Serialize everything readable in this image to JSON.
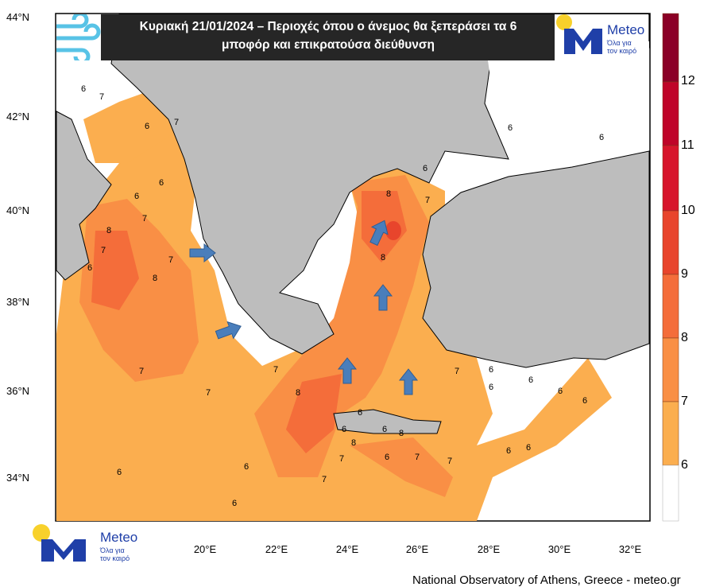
{
  "title": {
    "line1": "Κυριακή 21/01/2024 – Περιοχές όπου ο άνεμος θα ξεπεράσει τα 6",
    "line2": "μποφόρ και επικρατούσα διεύθυνση"
  },
  "logo": {
    "name": "Meteo",
    "tagline1": "Όλα για",
    "tagline2": "τον καιρό"
  },
  "lat_ticks": [
    "44°N",
    "42°N",
    "40°N",
    "38°N",
    "36°N",
    "34°N"
  ],
  "lon_ticks": [
    "20°E",
    "22°E",
    "24°E",
    "26°E",
    "28°E",
    "30°E",
    "32°E"
  ],
  "colorbar": {
    "labels": [
      "12",
      "11",
      "10",
      "9",
      "8",
      "7",
      "6"
    ],
    "colors": [
      "#8b0026",
      "#bf0428",
      "#d7152b",
      "#e8452c",
      "#f46d3a",
      "#f98f45",
      "#fbae4f",
      "#ffffff"
    ]
  },
  "field_colors": {
    "b6": "#fbae4f",
    "b7": "#f98f45",
    "b8": "#f46d3a",
    "b9": "#e8452c",
    "land": "#bdbdbd",
    "arrow": "#4a7ebb"
  },
  "contour_labels": [
    "6",
    "7",
    "6",
    "7",
    "6",
    "6",
    "7",
    "8",
    "7",
    "6",
    "7",
    "8",
    "8",
    "8",
    "7",
    "6",
    "7",
    "8",
    "7",
    "7",
    "6",
    "6",
    "7",
    "6",
    "8",
    "6",
    "7",
    "7",
    "6",
    "6",
    "6",
    "6",
    "6",
    "6",
    "6",
    "6",
    "6",
    "7",
    "8",
    "6",
    "6",
    "7",
    "6"
  ],
  "wind_arrows": [
    "SSW",
    "W",
    "WSW",
    "S",
    "S",
    "S"
  ],
  "footer": "National Observatory of Athens, Greece - meteo.gr"
}
